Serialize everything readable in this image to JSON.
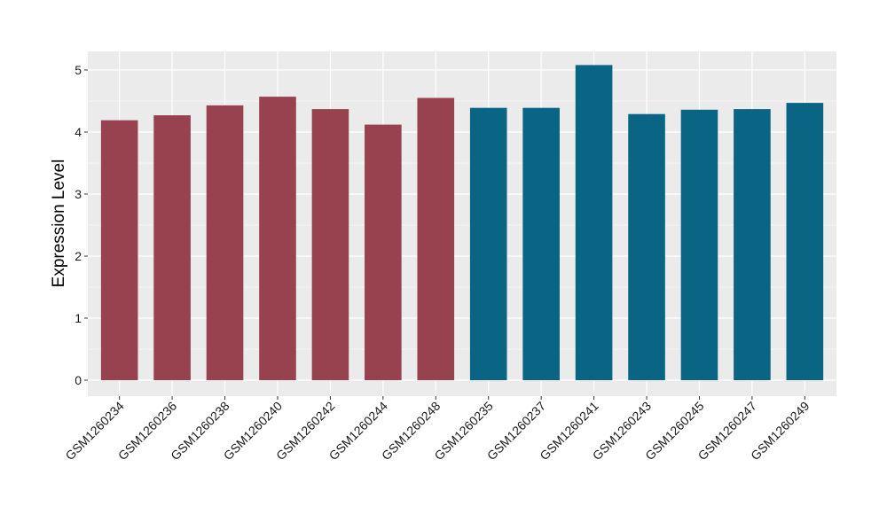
{
  "chart_data": {
    "type": "bar",
    "title": "",
    "xlabel": "",
    "ylabel": "Expression Level",
    "ylim": [
      0,
      5.2
    ],
    "yticks": [
      0,
      1,
      2,
      3,
      4,
      5
    ],
    "grid": true,
    "legend": "none",
    "categories": [
      "GSM1260234",
      "GSM1260236",
      "GSM1260238",
      "GSM1260240",
      "GSM1260242",
      "GSM1260244",
      "GSM1260248",
      "GSM1260235",
      "GSM1260237",
      "GSM1260241",
      "GSM1260243",
      "GSM1260245",
      "GSM1260247",
      "GSM1260249"
    ],
    "values": [
      4.19,
      4.27,
      4.43,
      4.57,
      4.37,
      4.12,
      4.55,
      4.39,
      4.39,
      5.08,
      4.29,
      4.36,
      4.37,
      4.47
    ],
    "groups": [
      0,
      0,
      0,
      0,
      0,
      0,
      0,
      1,
      1,
      1,
      1,
      1,
      1,
      1
    ],
    "colors": [
      "#98414f",
      "#0a6585"
    ],
    "panel_background": "#ebebeb",
    "grid_color": "#ffffff"
  }
}
